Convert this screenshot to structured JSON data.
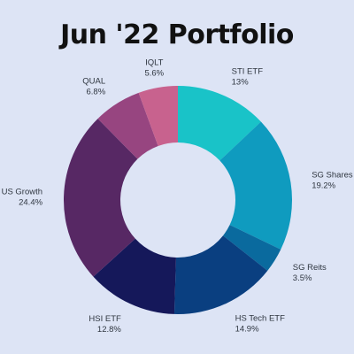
{
  "chart_data": {
    "type": "pie",
    "donut": true,
    "title": "Jun '22 Portfolio",
    "categories": [
      "STI ETF",
      "SG Shares",
      "SG Reits",
      "HS Tech ETF",
      "HSI ETF",
      "US Growth",
      "QUAL",
      "IQLT"
    ],
    "values": [
      13,
      19.2,
      3.5,
      14.9,
      12.8,
      24.4,
      6.8,
      5.6
    ],
    "value_labels": [
      "13%",
      "19.2%",
      "3.5%",
      "14.9%",
      "12.8%",
      "24.4%",
      "6.8%",
      "5.6%"
    ],
    "colors": [
      "#19c3c8",
      "#0f9bbf",
      "#0a6a9e",
      "#0a3f80",
      "#15185a",
      "#572864",
      "#974580",
      "#c8628e"
    ],
    "legend": "none"
  }
}
